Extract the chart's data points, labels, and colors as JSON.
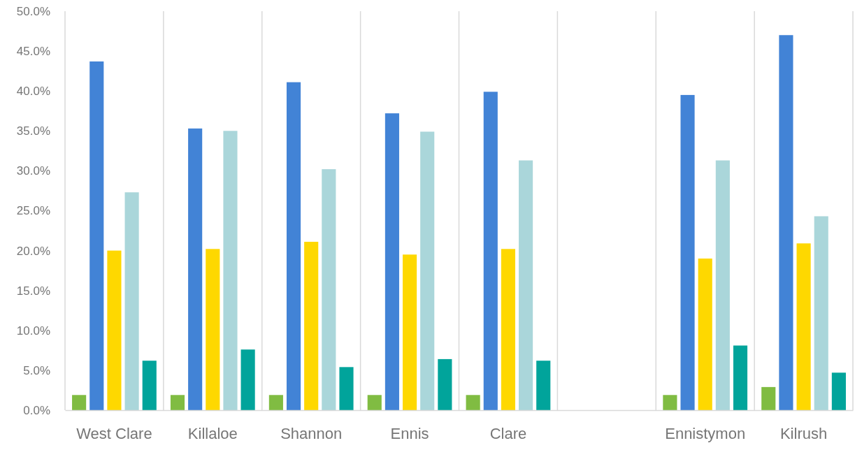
{
  "chart_data": {
    "type": "bar",
    "categories": [
      "West Clare",
      "Killaloe",
      "Shannon",
      "Ennis",
      "Clare",
      null,
      "Ennistymon",
      "Kilrush"
    ],
    "series": [
      {
        "color": "#80bc42",
        "values": [
          1.9,
          1.9,
          1.9,
          1.9,
          1.9,
          null,
          1.9,
          2.9
        ]
      },
      {
        "color": "#4283d6",
        "values": [
          43.7,
          35.3,
          41.1,
          37.2,
          39.9,
          null,
          39.5,
          47.0
        ]
      },
      {
        "color": "#fed800",
        "values": [
          20.0,
          20.2,
          21.1,
          19.5,
          20.2,
          null,
          19.0,
          20.9
        ]
      },
      {
        "color": "#aad6da",
        "values": [
          27.3,
          35.0,
          30.2,
          34.9,
          31.3,
          null,
          31.3,
          24.3
        ]
      },
      {
        "color": "#01a49b",
        "values": [
          6.2,
          7.6,
          5.4,
          6.4,
          6.2,
          null,
          8.1,
          4.7
        ]
      }
    ],
    "ylim": [
      0,
      50
    ],
    "yticks": [
      {
        "value": 0,
        "label": "0.0%"
      },
      {
        "value": 5,
        "label": "5.0%"
      },
      {
        "value": 10,
        "label": "10.0%"
      },
      {
        "value": 15,
        "label": "15.0%"
      },
      {
        "value": 20,
        "label": "20.0%"
      },
      {
        "value": 25,
        "label": "25.0%"
      },
      {
        "value": 30,
        "label": "30.0%"
      },
      {
        "value": 35,
        "label": "35.0%"
      },
      {
        "value": 40,
        "label": "40.0%"
      },
      {
        "value": 45,
        "label": "45.0%"
      },
      {
        "value": 50,
        "label": "50.0%"
      }
    ],
    "grid": "x"
  }
}
